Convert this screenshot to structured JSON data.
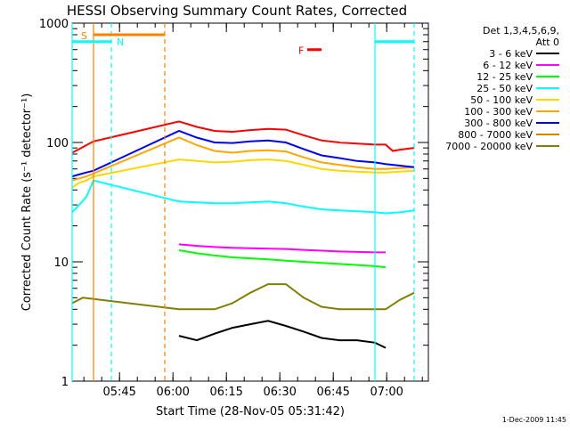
{
  "chart_data": {
    "type": "line",
    "title": "HESSI Observing Summary Count Rates, Corrected",
    "xlabel": "Start Time (28-Nov-05 05:31:42)",
    "ylabel": "Corrected Count Rate (s⁻¹ detector⁻¹)",
    "yscale": "log",
    "ylim": [
      1,
      1000
    ],
    "xlim_minutes": [
      0,
      100
    ],
    "x_tick_minutes": [
      13.3,
      28.3,
      43.3,
      58.3,
      73.3,
      88.3
    ],
    "x_tick_labels": [
      "05:45",
      "06:00",
      "06:15",
      "06:30",
      "06:45",
      "07:00"
    ],
    "y_ticks": [
      1,
      10,
      100,
      1000
    ],
    "y_tick_labels": [
      "1",
      "10",
      "100",
      "1000"
    ],
    "legend_header": [
      "Det 1,3,4,5,6,9,",
      "Att 0"
    ],
    "legend_position": "right",
    "series": [
      {
        "name": "3 - 6 keV",
        "color": "#000000",
        "x": [
          2,
          10,
          28,
          30,
          35,
          40,
          45,
          50,
          55,
          60,
          65,
          70,
          75,
          80,
          85,
          88
        ],
        "values": [
          null,
          null,
          null,
          2.4,
          2.2,
          2.5,
          2.8,
          3.0,
          3.2,
          2.9,
          2.6,
          2.3,
          2.2,
          2.2,
          2.1,
          1.9
        ]
      },
      {
        "name": "6 - 12 keV",
        "color": "#ff00ff",
        "x": [
          28,
          30,
          35,
          40,
          45,
          50,
          55,
          60,
          65,
          70,
          75,
          80,
          85,
          88
        ],
        "values": [
          null,
          14,
          13.6,
          13.3,
          13.1,
          13.0,
          12.9,
          12.8,
          12.6,
          12.4,
          12.2,
          12.1,
          12.0,
          12.0
        ]
      },
      {
        "name": "12 - 25 keV",
        "color": "#00ff00",
        "x": [
          28,
          30,
          35,
          40,
          45,
          50,
          55,
          60,
          65,
          70,
          75,
          80,
          85,
          88
        ],
        "values": [
          null,
          12.5,
          11.8,
          11.3,
          10.9,
          10.7,
          10.5,
          10.2,
          10.0,
          9.8,
          9.6,
          9.4,
          9.2,
          9.0
        ]
      },
      {
        "name": "25 - 50 keV",
        "color": "#00ffff",
        "x": [
          0,
          2,
          4,
          6,
          30,
          35,
          40,
          45,
          50,
          55,
          60,
          65,
          70,
          75,
          80,
          85,
          88,
          92,
          96
        ],
        "values": [
          26,
          30,
          35,
          48,
          32,
          31.5,
          31,
          31,
          31.5,
          32,
          31,
          29,
          27.5,
          27,
          26.5,
          26,
          25.5,
          26,
          27
        ]
      },
      {
        "name": "50 - 100 keV",
        "color": "#ffd700",
        "x": [
          0,
          2,
          4,
          6,
          30,
          35,
          40,
          45,
          50,
          55,
          60,
          65,
          70,
          75,
          80,
          85,
          88,
          92,
          96
        ],
        "values": [
          42,
          46,
          48,
          52,
          72,
          70,
          68,
          69,
          71,
          72,
          70,
          65,
          60,
          58,
          57,
          56,
          56,
          57,
          58
        ]
      },
      {
        "name": "100 - 300 keV",
        "color": "#ffa500",
        "x": [
          0,
          2,
          4,
          6,
          30,
          35,
          40,
          45,
          50,
          55,
          60,
          65,
          70,
          75,
          80,
          85,
          88,
          92,
          96
        ],
        "values": [
          48,
          50,
          52,
          55,
          110,
          95,
          85,
          82,
          85,
          86,
          84,
          75,
          68,
          65,
          62,
          60,
          60,
          61,
          62
        ]
      },
      {
        "name": "300 - 800 keV",
        "color": "#0000ff",
        "x": [
          0,
          2,
          4,
          6,
          30,
          35,
          40,
          45,
          50,
          55,
          60,
          65,
          70,
          75,
          80,
          85,
          88,
          92,
          96
        ],
        "values": [
          52,
          54,
          56,
          58,
          125,
          110,
          100,
          99,
          102,
          104,
          100,
          88,
          78,
          74,
          70,
          68,
          66,
          64,
          62
        ]
      },
      {
        "name": "800 - 7000 keV",
        "color": "#cc8800",
        "x": [],
        "values": []
      },
      {
        "name": "7000 - 20000 keV",
        "color": "#808000",
        "x": [
          0,
          3,
          30,
          35,
          40,
          45,
          50,
          55,
          60,
          65,
          70,
          75,
          80,
          85,
          88,
          92,
          96
        ],
        "values": [
          4.5,
          5.0,
          4.0,
          4.0,
          4.0,
          4.5,
          5.5,
          6.5,
          6.5,
          5.0,
          4.2,
          4.0,
          4.0,
          4.0,
          4.0,
          4.8,
          5.5
        ]
      },
      {
        "name": "red",
        "color": "#ff0000",
        "x": [
          0,
          2,
          4,
          6,
          30,
          35,
          40,
          45,
          50,
          55,
          60,
          65,
          70,
          75,
          80,
          85,
          88,
          90,
          92,
          96
        ],
        "values": [
          82,
          88,
          95,
          102,
          150,
          135,
          125,
          123,
          127,
          130,
          128,
          115,
          104,
          100,
          98,
          96,
          96,
          85,
          87,
          90
        ]
      }
    ],
    "attenuator_bar": {
      "label": "S",
      "start": 6,
      "end": 26,
      "level": 800,
      "color": "#ff7f00"
    },
    "night_bar": {
      "label": "N",
      "level": 700,
      "color": "#00ffff",
      "segments": [
        [
          0,
          11
        ],
        [
          85,
          96
        ]
      ]
    },
    "flare_marker": {
      "label": "F",
      "start": 66,
      "end": 70,
      "level": 600,
      "color": "#ff0000"
    },
    "vertical_lines": [
      {
        "x": 0,
        "color": "#00ffff",
        "style": "solid"
      },
      {
        "x": 6,
        "color": "#ff7f00",
        "style": "solid"
      },
      {
        "x": 11,
        "color": "#00ffff",
        "style": "dashed"
      },
      {
        "x": 26,
        "color": "#ff7f00",
        "style": "dashed"
      },
      {
        "x": 85,
        "color": "#00ffff",
        "style": "solid"
      },
      {
        "x": 96,
        "color": "#00ffff",
        "style": "dashed"
      }
    ]
  },
  "footer": {
    "timestamp": "1-Dec-2009 11:45"
  }
}
